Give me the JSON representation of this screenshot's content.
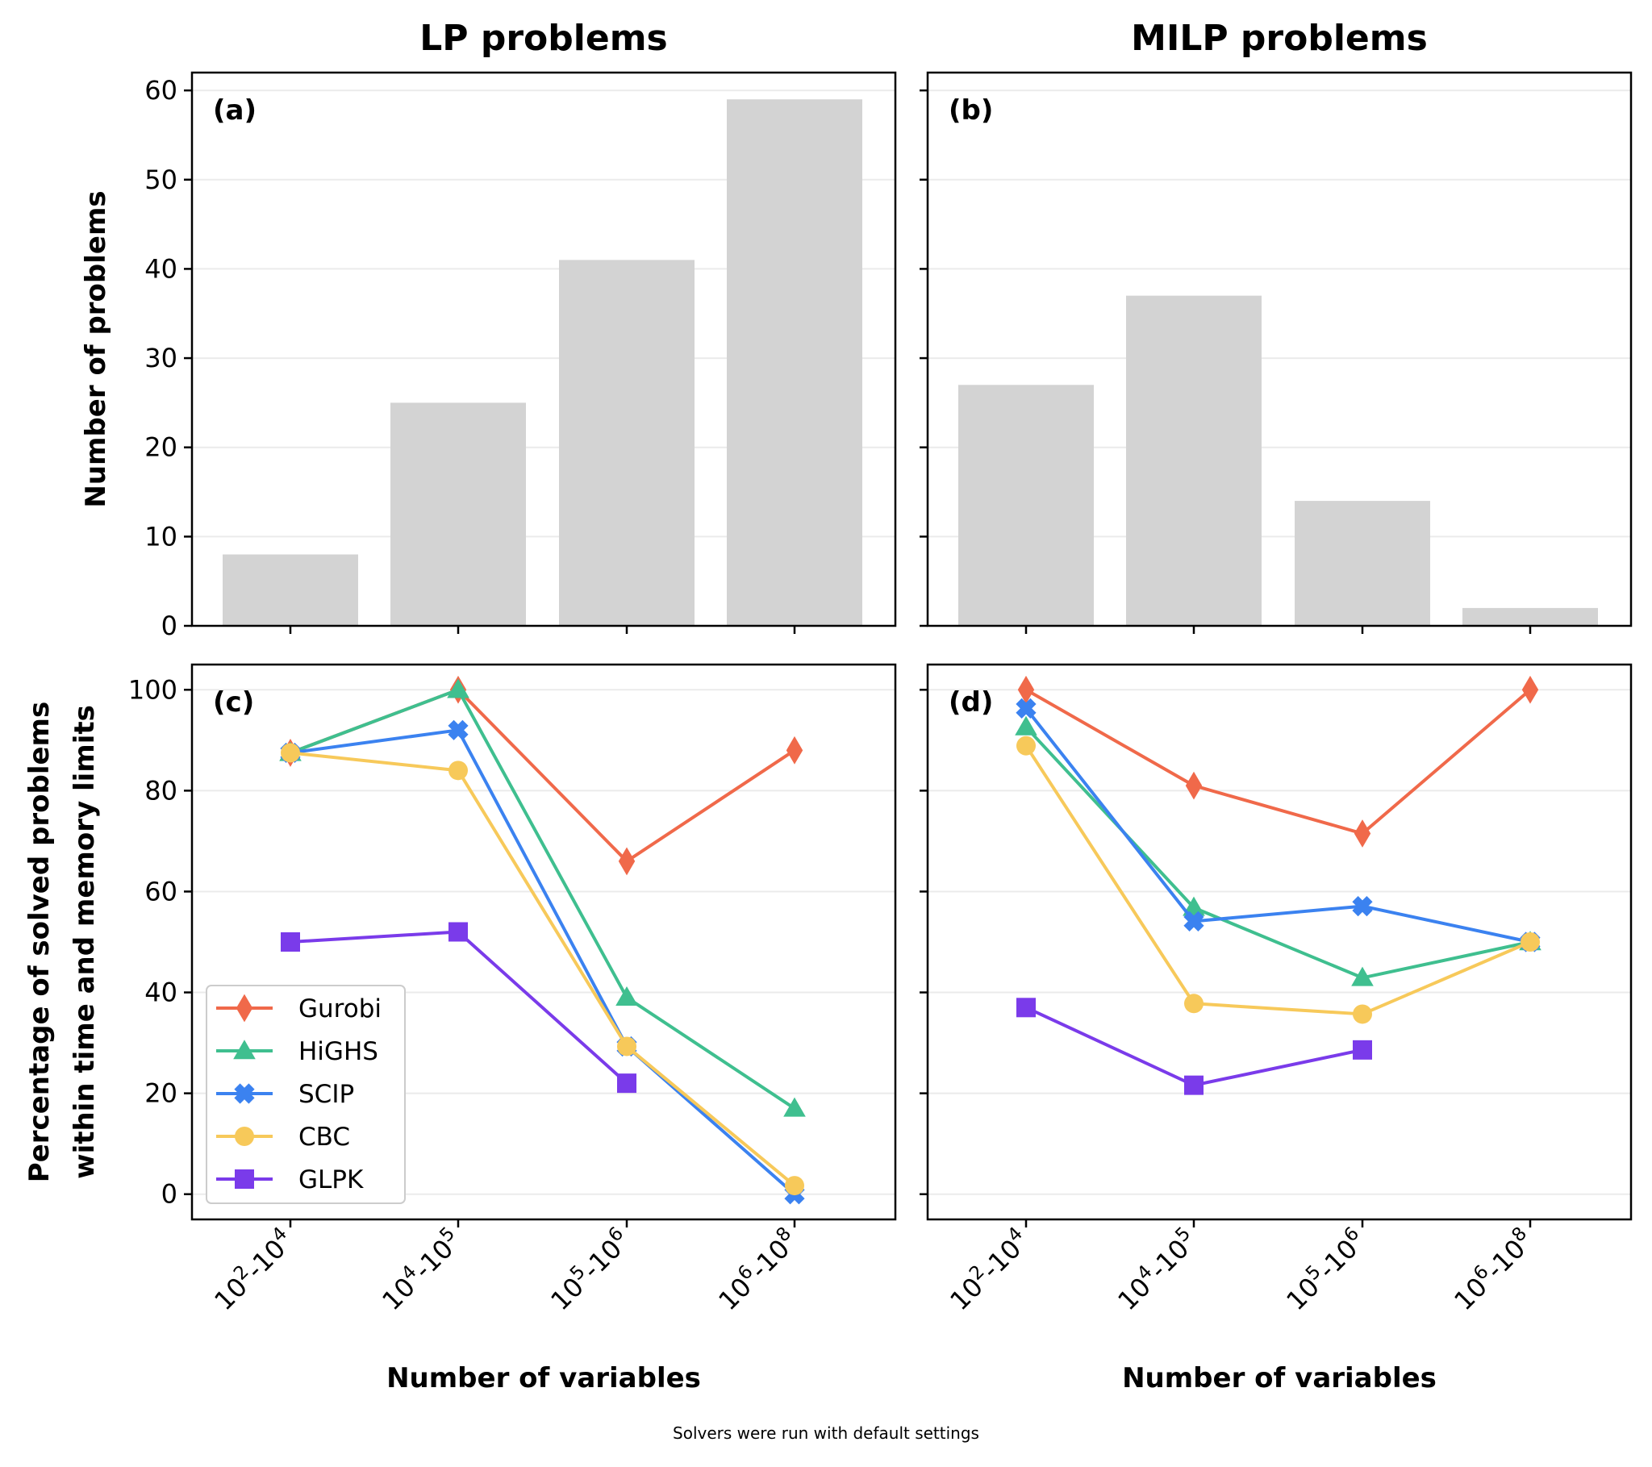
{
  "chart_data": [
    {
      "panel": "(a)",
      "type": "bar",
      "title": "LP problems",
      "ylabel": "Number of problems",
      "xlabel": "",
      "categories": [
        "10^2-10^4",
        "10^4-10^5",
        "10^5-10^6",
        "10^6-10^8"
      ],
      "values": [
        8,
        25,
        41,
        59
      ],
      "ylim": [
        0,
        62
      ],
      "yticks": [
        0,
        10,
        20,
        30,
        40,
        50,
        60
      ],
      "grid": "y",
      "bar_color": "#d3d3d3"
    },
    {
      "panel": "(b)",
      "type": "bar",
      "title": "MILP problems",
      "ylabel": "",
      "xlabel": "",
      "categories": [
        "10^2-10^4",
        "10^4-10^5",
        "10^5-10^6",
        "10^6-10^8"
      ],
      "values": [
        27,
        37,
        14,
        2
      ],
      "ylim": [
        0,
        62
      ],
      "yticks": [
        0,
        10,
        20,
        30,
        40,
        50,
        60
      ],
      "grid": "y",
      "bar_color": "#d3d3d3"
    },
    {
      "panel": "(c)",
      "type": "line",
      "ylabel": "Percentage of solved problems\nwithin time and memory limits",
      "xlabel": "Number of variables",
      "categories": [
        "10^2-10^4",
        "10^4-10^5",
        "10^5-10^6",
        "10^6-10^8"
      ],
      "ylim": [
        -5,
        105
      ],
      "yticks": [
        0,
        20,
        40,
        60,
        80,
        100
      ],
      "grid": "y",
      "legend": "lower-left",
      "series": [
        {
          "name": "Gurobi",
          "marker": "diamond",
          "color": "#f0694a",
          "values": [
            87.5,
            100,
            66,
            88
          ]
        },
        {
          "name": "HiGHS",
          "marker": "triangle",
          "color": "#3fbf8f",
          "values": [
            87.5,
            100,
            39,
            17
          ]
        },
        {
          "name": "SCIP",
          "marker": "x",
          "color": "#3b82f0",
          "values": [
            87.5,
            92,
            29.3,
            0
          ]
        },
        {
          "name": "CBC",
          "marker": "circle",
          "color": "#f7c95a",
          "values": [
            87.5,
            84,
            29.3,
            1.7
          ]
        },
        {
          "name": "GLPK",
          "marker": "square",
          "color": "#7a3bea",
          "values": [
            50,
            52,
            22,
            null
          ]
        }
      ]
    },
    {
      "panel": "(d)",
      "type": "line",
      "ylabel": "",
      "xlabel": "Number of variables",
      "categories": [
        "10^2-10^4",
        "10^4-10^5",
        "10^5-10^6",
        "10^6-10^8"
      ],
      "ylim": [
        -5,
        105
      ],
      "yticks": [
        0,
        20,
        40,
        60,
        80,
        100
      ],
      "grid": "y",
      "series": [
        {
          "name": "Gurobi",
          "marker": "diamond",
          "color": "#f0694a",
          "values": [
            100,
            81,
            71.5,
            100
          ]
        },
        {
          "name": "HiGHS",
          "marker": "triangle",
          "color": "#3fbf8f",
          "values": [
            92.6,
            56.8,
            42.9,
            50
          ]
        },
        {
          "name": "SCIP",
          "marker": "x",
          "color": "#3b82f0",
          "values": [
            96.3,
            54.1,
            57.1,
            50
          ]
        },
        {
          "name": "CBC",
          "marker": "circle",
          "color": "#f7c95a",
          "values": [
            88.9,
            37.8,
            35.7,
            50
          ]
        },
        {
          "name": "GLPK",
          "marker": "square",
          "color": "#7a3bea",
          "values": [
            37,
            21.6,
            28.6,
            null
          ]
        }
      ]
    }
  ],
  "footnote": "Solvers were run with default settings"
}
